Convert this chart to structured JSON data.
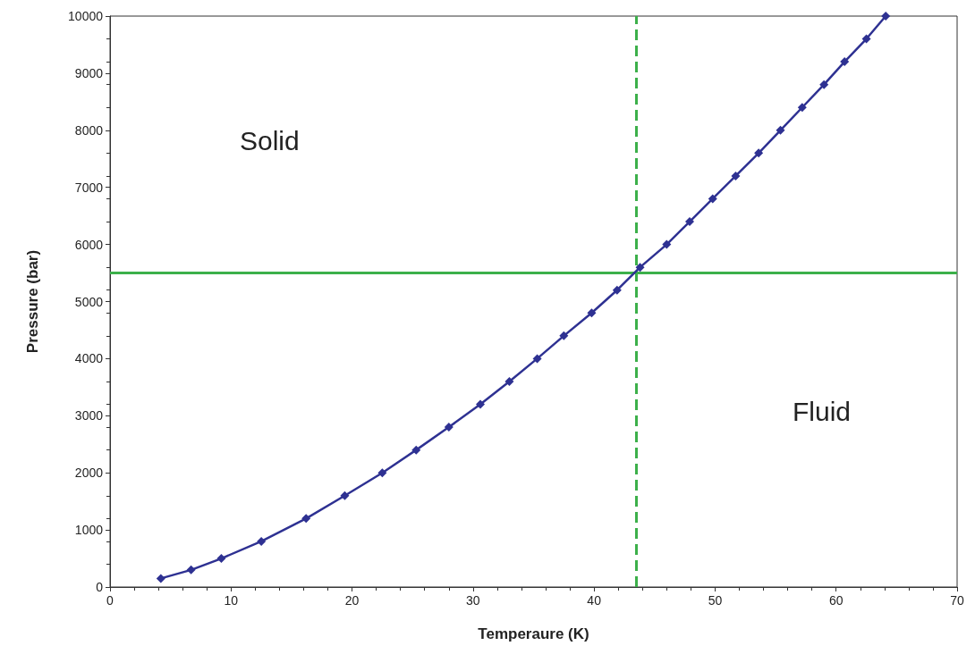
{
  "chart_data": {
    "type": "line",
    "xlabel": "Temperaure (K)",
    "ylabel": "Pressure (bar)",
    "x": [
      4.2,
      6.7,
      9.2,
      12.5,
      16.2,
      19.4,
      22.5,
      25.3,
      28.0,
      30.6,
      33.0,
      35.3,
      37.5,
      39.8,
      41.9,
      43.8,
      46.0,
      47.9,
      49.8,
      51.7,
      53.6,
      55.4,
      57.2,
      59.0,
      60.7,
      62.5,
      64.1
    ],
    "series": [
      {
        "color": "#2e3192",
        "values": [
          150,
          300,
          500,
          800,
          1200,
          1600,
          2000,
          2400,
          2800,
          3200,
          3600,
          4000,
          4400,
          4800,
          5200,
          5600,
          6000,
          6400,
          6800,
          7200,
          7600,
          8000,
          8400,
          8800,
          9200,
          9600,
          10000
        ]
      }
    ],
    "xlim": [
      0,
      70
    ],
    "xticks": [
      0,
      10,
      20,
      30,
      40,
      50,
      60,
      70
    ],
    "ylim": [
      0,
      10000
    ],
    "yticks": [
      0,
      1000,
      2000,
      3000,
      4000,
      5000,
      6000,
      7000,
      8000,
      9000,
      10000
    ],
    "ref_lines": [
      {
        "axis": "y",
        "value": 5500,
        "color": "#3cb04a",
        "line_style": "solid"
      },
      {
        "axis": "x",
        "value": 43.5,
        "color": "#3cb04a",
        "line_style": "dashed"
      }
    ],
    "annotations": [
      "Solid",
      "Fluid"
    ],
    "marker": "diamond",
    "line_style": "solid",
    "grid": false
  }
}
